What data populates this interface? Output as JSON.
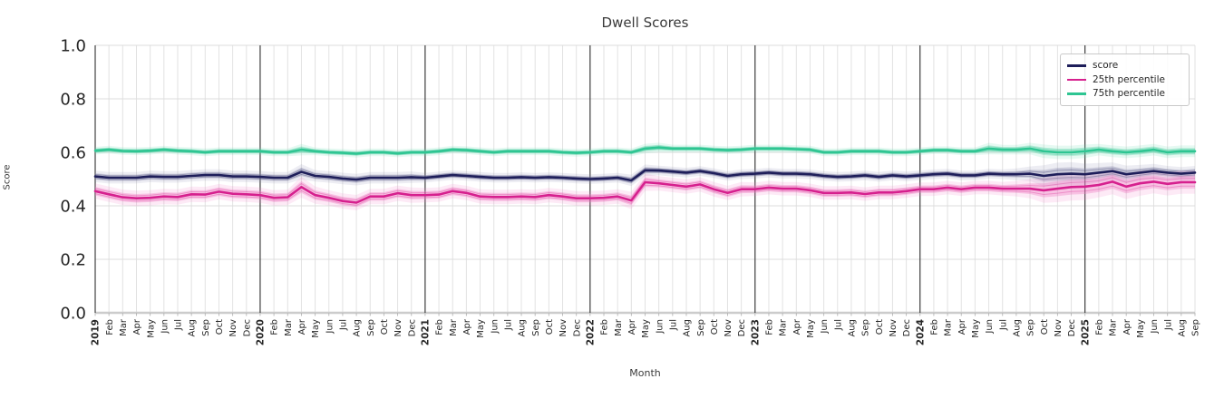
{
  "title": "Dwell Scores",
  "chart_data": {
    "type": "line",
    "title": "Dwell Scores",
    "xlabel": "Month",
    "ylabel": "Score",
    "ylim": [
      0.0,
      1.0
    ],
    "y_ticks": [
      "0.0",
      "0.2",
      "0.4",
      "0.6",
      "0.8",
      "1.0"
    ],
    "grid": true,
    "legend_position": "upper right",
    "x_range": "Jan 2019 - Sep 2025",
    "x_tick_labels": [
      "2019",
      "Feb",
      "Mar",
      "Apr",
      "May",
      "Jun",
      "Jul",
      "Aug",
      "Sep",
      "Oct",
      "Nov",
      "Dec",
      "2020",
      "Feb",
      "Mar",
      "Apr",
      "May",
      "Jun",
      "Jul",
      "Aug",
      "Sep",
      "Oct",
      "Nov",
      "Dec",
      "2021",
      "Feb",
      "Mar",
      "Apr",
      "May",
      "Jun",
      "Jul",
      "Aug",
      "Sep",
      "Oct",
      "Nov",
      "Dec",
      "2022",
      "Feb",
      "Mar",
      "Apr",
      "May",
      "Jun",
      "Jul",
      "Aug",
      "Sep",
      "Oct",
      "Nov",
      "Dec",
      "2023",
      "Feb",
      "Mar",
      "Apr",
      "May",
      "Jun",
      "Jul",
      "Aug",
      "Sep",
      "Oct",
      "Nov",
      "Dec",
      "2024",
      "Feb",
      "Mar",
      "Apr",
      "May",
      "Jun",
      "Jul",
      "Aug",
      "Sep",
      "Oct",
      "Nov",
      "Dec",
      "2025",
      "Feb",
      "Mar",
      "Apr",
      "May",
      "Jun",
      "Jul",
      "Aug",
      "Sep"
    ],
    "series": [
      {
        "name": "score",
        "color": "#1e1e5a",
        "band_color": "#9090b4",
        "values": [
          0.51,
          0.505,
          0.505,
          0.505,
          0.51,
          0.508,
          0.508,
          0.512,
          0.515,
          0.515,
          0.51,
          0.51,
          0.508,
          0.505,
          0.505,
          0.527,
          0.512,
          0.508,
          0.502,
          0.498,
          0.505,
          0.505,
          0.505,
          0.507,
          0.505,
          0.51,
          0.515,
          0.512,
          0.508,
          0.505,
          0.505,
          0.507,
          0.505,
          0.507,
          0.505,
          0.502,
          0.5,
          0.502,
          0.505,
          0.495,
          0.533,
          0.532,
          0.528,
          0.524,
          0.53,
          0.522,
          0.512,
          0.518,
          0.52,
          0.524,
          0.52,
          0.52,
          0.518,
          0.512,
          0.508,
          0.51,
          0.514,
          0.508,
          0.514,
          0.51,
          0.514,
          0.518,
          0.52,
          0.514,
          0.514,
          0.52,
          0.518,
          0.518,
          0.52,
          0.512,
          0.518,
          0.52,
          0.518,
          0.524,
          0.53,
          0.518,
          0.524,
          0.53,
          0.524,
          0.52,
          0.524
        ],
        "band_halfwidth": [
          0.012,
          0.012,
          0.012,
          0.012,
          0.012,
          0.012,
          0.012,
          0.012,
          0.012,
          0.012,
          0.012,
          0.012,
          0.012,
          0.012,
          0.012,
          0.016,
          0.012,
          0.012,
          0.012,
          0.012,
          0.012,
          0.012,
          0.012,
          0.012,
          0.01,
          0.01,
          0.01,
          0.01,
          0.01,
          0.01,
          0.01,
          0.01,
          0.01,
          0.01,
          0.01,
          0.01,
          0.01,
          0.01,
          0.01,
          0.012,
          0.012,
          0.01,
          0.01,
          0.01,
          0.01,
          0.01,
          0.01,
          0.01,
          0.01,
          0.01,
          0.01,
          0.01,
          0.01,
          0.01,
          0.01,
          0.01,
          0.01,
          0.01,
          0.01,
          0.01,
          0.01,
          0.01,
          0.01,
          0.01,
          0.01,
          0.01,
          0.01,
          0.012,
          0.015,
          0.022,
          0.024,
          0.024,
          0.022,
          0.02,
          0.018,
          0.018,
          0.016,
          0.015,
          0.014,
          0.014,
          0.014
        ]
      },
      {
        "name": "25th percentile",
        "color": "#d6208e",
        "band_color": "#f07ec4",
        "values": [
          0.455,
          0.443,
          0.432,
          0.428,
          0.43,
          0.435,
          0.433,
          0.443,
          0.442,
          0.453,
          0.445,
          0.443,
          0.44,
          0.43,
          0.432,
          0.47,
          0.44,
          0.43,
          0.418,
          0.412,
          0.435,
          0.435,
          0.447,
          0.44,
          0.44,
          0.442,
          0.455,
          0.448,
          0.435,
          0.433,
          0.433,
          0.435,
          0.433,
          0.44,
          0.435,
          0.428,
          0.428,
          0.43,
          0.435,
          0.42,
          0.488,
          0.484,
          0.478,
          0.472,
          0.48,
          0.462,
          0.448,
          0.462,
          0.462,
          0.468,
          0.464,
          0.464,
          0.458,
          0.448,
          0.448,
          0.45,
          0.444,
          0.45,
          0.45,
          0.455,
          0.462,
          0.462,
          0.468,
          0.462,
          0.468,
          0.468,
          0.464,
          0.464,
          0.464,
          0.458,
          0.464,
          0.47,
          0.472,
          0.478,
          0.49,
          0.472,
          0.484,
          0.49,
          0.482,
          0.488,
          0.488
        ],
        "band_halfwidth": [
          0.016,
          0.016,
          0.016,
          0.016,
          0.016,
          0.016,
          0.016,
          0.016,
          0.016,
          0.016,
          0.016,
          0.016,
          0.016,
          0.016,
          0.016,
          0.022,
          0.018,
          0.016,
          0.016,
          0.016,
          0.016,
          0.016,
          0.016,
          0.016,
          0.015,
          0.015,
          0.015,
          0.015,
          0.015,
          0.015,
          0.015,
          0.015,
          0.015,
          0.015,
          0.015,
          0.015,
          0.015,
          0.015,
          0.015,
          0.018,
          0.018,
          0.015,
          0.015,
          0.015,
          0.015,
          0.015,
          0.015,
          0.015,
          0.014,
          0.014,
          0.014,
          0.014,
          0.014,
          0.014,
          0.014,
          0.014,
          0.014,
          0.014,
          0.014,
          0.014,
          0.014,
          0.014,
          0.014,
          0.014,
          0.014,
          0.014,
          0.014,
          0.016,
          0.02,
          0.026,
          0.028,
          0.028,
          0.028,
          0.026,
          0.026,
          0.026,
          0.026,
          0.024,
          0.024,
          0.024,
          0.024
        ]
      },
      {
        "name": "75th percentile",
        "color": "#2ec592",
        "band_color": "#66d7ae",
        "values": [
          0.606,
          0.61,
          0.605,
          0.604,
          0.606,
          0.61,
          0.606,
          0.604,
          0.6,
          0.604,
          0.604,
          0.604,
          0.604,
          0.6,
          0.6,
          0.61,
          0.604,
          0.6,
          0.598,
          0.595,
          0.6,
          0.6,
          0.596,
          0.6,
          0.6,
          0.604,
          0.61,
          0.608,
          0.604,
          0.6,
          0.604,
          0.604,
          0.604,
          0.604,
          0.6,
          0.598,
          0.6,
          0.604,
          0.604,
          0.6,
          0.614,
          0.618,
          0.614,
          0.614,
          0.614,
          0.61,
          0.608,
          0.61,
          0.614,
          0.614,
          0.614,
          0.612,
          0.61,
          0.6,
          0.6,
          0.604,
          0.604,
          0.604,
          0.6,
          0.6,
          0.604,
          0.608,
          0.608,
          0.604,
          0.604,
          0.614,
          0.61,
          0.61,
          0.614,
          0.604,
          0.6,
          0.6,
          0.604,
          0.61,
          0.604,
          0.6,
          0.604,
          0.61,
          0.6,
          0.604,
          0.604
        ],
        "band_halfwidth": [
          0.008,
          0.008,
          0.008,
          0.008,
          0.008,
          0.008,
          0.008,
          0.008,
          0.008,
          0.008,
          0.008,
          0.008,
          0.008,
          0.008,
          0.008,
          0.012,
          0.008,
          0.008,
          0.008,
          0.008,
          0.008,
          0.008,
          0.008,
          0.008,
          0.008,
          0.008,
          0.008,
          0.008,
          0.008,
          0.008,
          0.008,
          0.008,
          0.008,
          0.008,
          0.008,
          0.008,
          0.008,
          0.008,
          0.008,
          0.008,
          0.01,
          0.01,
          0.008,
          0.008,
          0.008,
          0.008,
          0.008,
          0.008,
          0.008,
          0.008,
          0.008,
          0.008,
          0.008,
          0.008,
          0.008,
          0.008,
          0.008,
          0.008,
          0.008,
          0.008,
          0.008,
          0.008,
          0.008,
          0.008,
          0.008,
          0.012,
          0.01,
          0.01,
          0.012,
          0.014,
          0.014,
          0.014,
          0.014,
          0.012,
          0.012,
          0.012,
          0.012,
          0.012,
          0.012,
          0.012,
          0.012
        ]
      }
    ]
  }
}
